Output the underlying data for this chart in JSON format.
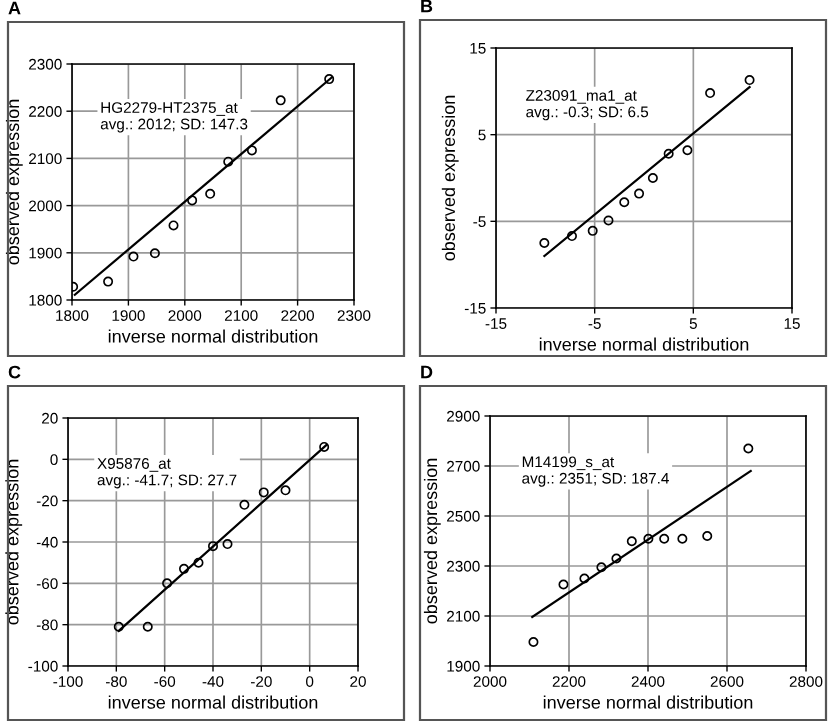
{
  "chart_data": [
    {
      "type": "scatter",
      "title": "A",
      "xlabel": "inverse normal distribution",
      "ylabel": "observed expression",
      "annotations": [
        "HG2279-HT2375_at\navg.: 2012; SD: 147.3"
      ],
      "xlim": [
        1800,
        2300
      ],
      "ylim": [
        1800,
        2300
      ],
      "xticks": [
        1800,
        1900,
        2000,
        2100,
        2200,
        2300
      ],
      "yticks": [
        1800,
        1900,
        2000,
        2100,
        2200,
        2300
      ],
      "grid": true,
      "series": [
        {
          "color": "#000000",
          "marker": "circle",
          "x": [
            1802,
            1864,
            1909,
            1947,
            1980,
            2013,
            2045,
            2077,
            2119,
            2170,
            2256
          ],
          "values": [
            1828,
            1839,
            1892,
            1899,
            1958,
            2011,
            2025,
            2093,
            2117,
            2223,
            2268
          ]
        },
        {
          "type": "line",
          "marker": "none",
          "color": "#000000",
          "x": [
            1805,
            2261
          ],
          "values": [
            1811,
            2272
          ]
        }
      ]
    },
    {
      "type": "scatter",
      "title": "B",
      "xlabel": "inverse normal distribution",
      "ylabel": "observed expression",
      "annotations": [
        "Z23091_ma1_at\navg.: -0.3; SD: 6.5"
      ],
      "xlim": [
        -15,
        15
      ],
      "ylim": [
        -15,
        15
      ],
      "xticks": [
        -15,
        -5,
        5,
        15
      ],
      "yticks": [
        -15,
        -5,
        5,
        15
      ],
      "grid": true,
      "series": [
        {
          "color": "#000000",
          "marker": "circle",
          "x": [
            -10.1,
            -7.3,
            -5.2,
            -3.6,
            -2.0,
            -0.5,
            0.9,
            2.5,
            4.4,
            6.7,
            10.7
          ],
          "values": [
            -7.5,
            -6.7,
            -6.1,
            -4.9,
            -2.8,
            -1.8,
            0.0,
            2.8,
            3.2,
            9.8,
            11.3
          ]
        },
        {
          "type": "line",
          "marker": "none",
          "color": "#000000",
          "x": [
            -10.1,
            10.7
          ],
          "values": [
            -9.0,
            10.5
          ]
        }
      ]
    },
    {
      "type": "scatter",
      "title": "C",
      "xlabel": "inverse normal distribution",
      "ylabel": "observed expression",
      "annotations": [
        "X95876_at\navg.: -41.7; SD: 27.7"
      ],
      "xlim": [
        -100,
        20
      ],
      "ylim": [
        -100,
        20
      ],
      "xticks": [
        -100,
        -80,
        -60,
        -40,
        -20,
        0,
        20
      ],
      "yticks": [
        -100,
        -80,
        -60,
        -40,
        -20,
        0,
        20
      ],
      "grid": true,
      "series": [
        {
          "color": "#000000",
          "marker": "circle",
          "x": [
            -79,
            -67,
            -59,
            -52,
            -46,
            -40,
            -34,
            -27,
            -19,
            -10,
            6
          ],
          "values": [
            -81,
            -81,
            -60,
            -53,
            -50,
            -42,
            -41,
            -22,
            -16,
            -15,
            6
          ]
        },
        {
          "type": "line",
          "marker": "none",
          "color": "#000000",
          "x": [
            -79,
            7
          ],
          "values": [
            -83,
            7
          ]
        }
      ]
    },
    {
      "type": "scatter",
      "title": "D",
      "xlabel": "inverse normal distribution",
      "ylabel": "observed expression",
      "annotations": [
        "M14199_s_at\navg.: 2351; SD: 187.4"
      ],
      "xlim": [
        2000,
        2800
      ],
      "ylim": [
        1900,
        2900
      ],
      "xticks": [
        2000,
        2200,
        2400,
        2600,
        2800
      ],
      "yticks": [
        1900,
        2100,
        2300,
        2500,
        2700,
        2900
      ],
      "grid": true,
      "series": [
        {
          "color": "#000000",
          "marker": "circle",
          "x": [
            2110,
            2186,
            2239,
            2282,
            2320,
            2359,
            2401,
            2441,
            2487,
            2550,
            2654
          ],
          "values": [
            1996,
            2226,
            2250,
            2295,
            2330,
            2399,
            2409,
            2409,
            2409,
            2420,
            2770
          ]
        },
        {
          "type": "line",
          "marker": "none",
          "color": "#000000",
          "x": [
            2107,
            2660
          ],
          "values": [
            2096,
            2680
          ]
        }
      ]
    }
  ]
}
